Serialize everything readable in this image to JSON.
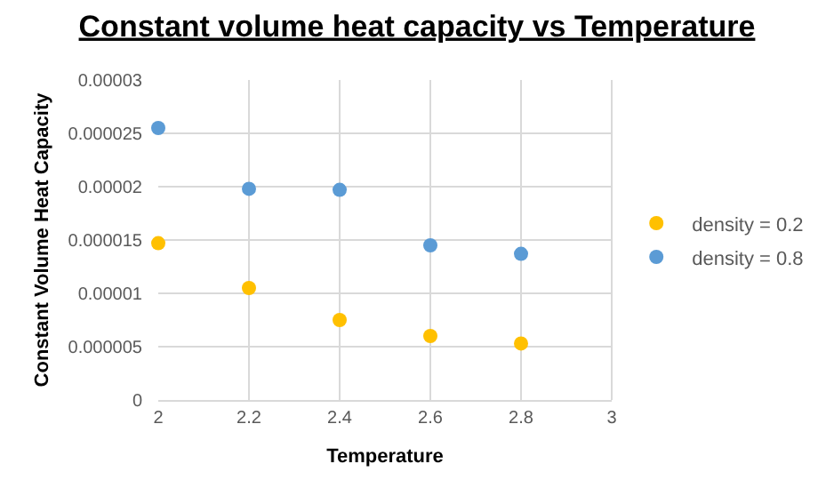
{
  "chart_data": {
    "type": "scatter",
    "title": "Constant volume heat capacity vs Temperature",
    "xlabel": "Temperature",
    "ylabel": "Constant Volume Heat Capacity",
    "x": [
      2,
      2.2,
      2.4,
      2.6,
      2.8
    ],
    "series": [
      {
        "name": "density = 0.2",
        "color": "#ffc000",
        "values": [
          1.47e-05,
          1.05e-05,
          7.5e-06,
          6e-06,
          5.3e-06
        ]
      },
      {
        "name": "density = 0.8",
        "color": "#5b9bd5",
        "values": [
          2.55e-05,
          1.98e-05,
          1.97e-05,
          1.45e-05,
          1.37e-05
        ]
      }
    ],
    "xlim": [
      2,
      3
    ],
    "xticks": [
      2,
      2.2,
      2.4,
      2.6,
      2.8,
      3
    ],
    "ylim": [
      0,
      3e-05
    ],
    "yticks": [
      0,
      {
        "value": 5e-06,
        "label": "0.000005"
      },
      {
        "value": 1e-05,
        "label": "0.00001"
      },
      {
        "value": 1.5e-05,
        "label": "0.000015"
      },
      {
        "value": 2e-05,
        "label": "0.00002"
      },
      {
        "value": 2.5e-05,
        "label": "0.000025"
      },
      {
        "value": 3e-05,
        "label": "0.00003"
      }
    ],
    "grid": true,
    "legend": "right",
    "marker": "circle"
  }
}
